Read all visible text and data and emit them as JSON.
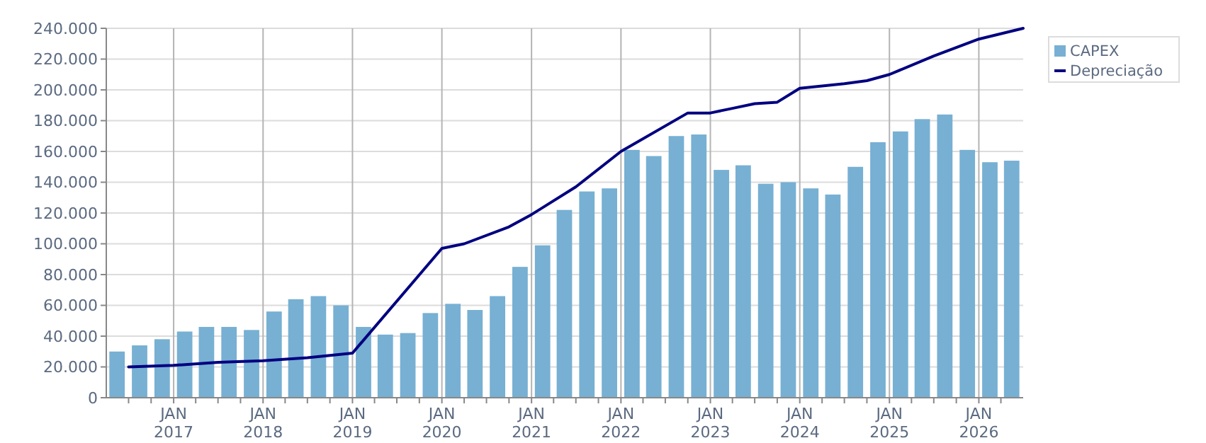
{
  "chart_data": {
    "type": "bar",
    "x": [
      "2016-05-15",
      "2016-08-15",
      "2016-11-15",
      "2017-02-15",
      "2017-05-15",
      "2017-08-15",
      "2017-11-15",
      "2018-02-15",
      "2018-05-15",
      "2018-08-15",
      "2018-11-15",
      "2019-02-15",
      "2019-05-15",
      "2019-08-15",
      "2019-11-15",
      "2020-02-15",
      "2020-05-15",
      "2020-08-15",
      "2020-11-15",
      "2021-02-15",
      "2021-05-15",
      "2021-08-15",
      "2021-11-15",
      "2022-02-15",
      "2022-05-15",
      "2022-08-15",
      "2022-11-15",
      "2023-02-15",
      "2023-05-15",
      "2023-08-15",
      "2023-11-15",
      "2024-02-15",
      "2024-05-15",
      "2024-08-15",
      "2024-11-15",
      "2025-02-15",
      "2025-05-15",
      "2025-08-15",
      "2025-11-15",
      "2026-02-15",
      "2026-05-15"
    ],
    "series": [
      {
        "name": "CAPEX",
        "color": "#77b0d3",
        "values": [
          30000,
          34000,
          38000,
          43000,
          46000,
          46000,
          44000,
          56000,
          64000,
          66000,
          60000,
          46000,
          41000,
          42000,
          55000,
          61000,
          57000,
          66000,
          85000,
          99000,
          122000,
          134000,
          136000,
          161000,
          157000,
          170000,
          171000,
          148000,
          151000,
          139000,
          140000,
          136000,
          132000,
          150000,
          166000,
          173000,
          181000,
          184000,
          161000,
          153000,
          154000
        ]
      },
      {
        "name": "Depreciação",
        "type": "line",
        "color": "#000080",
        "x": [
          "2016-07",
          "2017-01",
          "2017-07",
          "2018-01",
          "2018-07",
          "2019-01",
          "2020-01",
          "2020-04",
          "2020-10",
          "2021-01",
          "2021-07",
          "2022-01",
          "2022-10",
          "2023-01",
          "2023-04",
          "2023-07",
          "2023-10",
          "2024-01",
          "2024-07",
          "2024-10",
          "2025-01",
          "2025-07",
          "2026-01",
          "2026-07"
        ],
        "values": [
          20000,
          21000,
          23000,
          24000,
          26000,
          29000,
          97000,
          100000,
          111000,
          119000,
          137000,
          160000,
          185000,
          185000,
          188000,
          191000,
          192000,
          201000,
          204000,
          206000,
          210000,
          222000,
          233000,
          240000
        ]
      }
    ],
    "xlim": [
      "2016-04-01",
      "2026-07-01"
    ],
    "xticks": [
      {
        "value": "2016-07",
        "label": null
      },
      {
        "value": "2016-10",
        "label": null
      },
      {
        "value": "2017-01",
        "label": "JAN 2017"
      },
      {
        "value": "2017-04",
        "label": null
      },
      {
        "value": "2017-07",
        "label": null
      },
      {
        "value": "2017-10",
        "label": null
      },
      {
        "value": "2018-01",
        "label": "JAN 2018"
      },
      {
        "value": "2018-04",
        "label": null
      },
      {
        "value": "2018-07",
        "label": null
      },
      {
        "value": "2018-10",
        "label": null
      },
      {
        "value": "2019-01",
        "label": "JAN 2019"
      },
      {
        "value": "2019-04",
        "label": null
      },
      {
        "value": "2019-07",
        "label": null
      },
      {
        "value": "2019-10",
        "label": null
      },
      {
        "value": "2020-01",
        "label": "JAN 2020"
      },
      {
        "value": "2020-04",
        "label": null
      },
      {
        "value": "2020-07",
        "label": null
      },
      {
        "value": "2020-10",
        "label": null
      },
      {
        "value": "2021-01",
        "label": "JAN 2021"
      },
      {
        "value": "2021-04",
        "label": null
      },
      {
        "value": "2021-07",
        "label": null
      },
      {
        "value": "2021-10",
        "label": null
      },
      {
        "value": "2022-01",
        "label": "JAN 2022"
      },
      {
        "value": "2022-04",
        "label": null
      },
      {
        "value": "2022-07",
        "label": null
      },
      {
        "value": "2022-10",
        "label": null
      },
      {
        "value": "2023-01",
        "label": "JAN 2023"
      },
      {
        "value": "2023-04",
        "label": null
      },
      {
        "value": "2023-07",
        "label": null
      },
      {
        "value": "2023-10",
        "label": null
      },
      {
        "value": "2024-01",
        "label": "JAN 2024"
      },
      {
        "value": "2024-04",
        "label": null
      },
      {
        "value": "2024-07",
        "label": null
      },
      {
        "value": "2024-10",
        "label": null
      },
      {
        "value": "2025-01",
        "label": "JAN 2025"
      },
      {
        "value": "2025-04",
        "label": null
      },
      {
        "value": "2025-07",
        "label": null
      },
      {
        "value": "2025-10",
        "label": null
      },
      {
        "value": "2026-01",
        "label": "JAN 2026"
      },
      {
        "value": "2026-04",
        "label": null
      }
    ],
    "ylim": [
      0,
      240000
    ],
    "yticks": [
      0,
      {
        "value": 20000,
        "label": "20.000"
      },
      {
        "value": 40000,
        "label": "40.000"
      },
      {
        "value": 60000,
        "label": "60.000"
      },
      {
        "value": 80000,
        "label": "80.000"
      },
      {
        "value": 100000,
        "label": "100.000"
      },
      {
        "value": 120000,
        "label": "120.000"
      },
      {
        "value": 140000,
        "label": "140.000"
      },
      {
        "value": 160000,
        "label": "160.000"
      },
      {
        "value": 180000,
        "label": "180.000"
      },
      {
        "value": 200000,
        "label": "200.000"
      },
      {
        "value": 220000,
        "label": "220.000"
      },
      {
        "value": 240000,
        "label": "240.000"
      }
    ],
    "grid": true,
    "legend": "top right"
  }
}
